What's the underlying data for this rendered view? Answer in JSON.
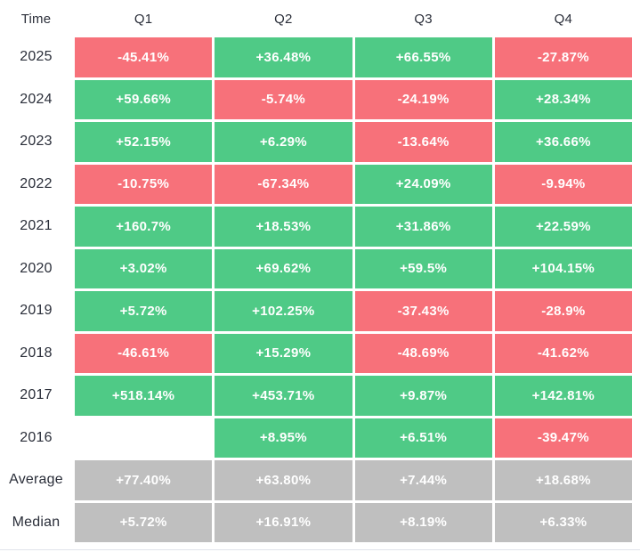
{
  "table": {
    "header": {
      "time_label": "Time",
      "columns": [
        "Q1",
        "Q2",
        "Q3",
        "Q4"
      ]
    },
    "rows": [
      {
        "label": "2025",
        "cells": [
          {
            "value": "-45.41%",
            "state": "negative"
          },
          {
            "value": "+36.48%",
            "state": "positive"
          },
          {
            "value": "+66.55%",
            "state": "positive"
          },
          {
            "value": "-27.87%",
            "state": "negative"
          }
        ]
      },
      {
        "label": "2024",
        "cells": [
          {
            "value": "+59.66%",
            "state": "positive"
          },
          {
            "value": "-5.74%",
            "state": "negative"
          },
          {
            "value": "-24.19%",
            "state": "negative"
          },
          {
            "value": "+28.34%",
            "state": "positive"
          }
        ]
      },
      {
        "label": "2023",
        "cells": [
          {
            "value": "+52.15%",
            "state": "positive"
          },
          {
            "value": "+6.29%",
            "state": "positive"
          },
          {
            "value": "-13.64%",
            "state": "negative"
          },
          {
            "value": "+36.66%",
            "state": "positive"
          }
        ]
      },
      {
        "label": "2022",
        "cells": [
          {
            "value": "-10.75%",
            "state": "negative"
          },
          {
            "value": "-67.34%",
            "state": "negative"
          },
          {
            "value": "+24.09%",
            "state": "positive"
          },
          {
            "value": "-9.94%",
            "state": "negative"
          }
        ]
      },
      {
        "label": "2021",
        "cells": [
          {
            "value": "+160.7%",
            "state": "positive"
          },
          {
            "value": "+18.53%",
            "state": "positive"
          },
          {
            "value": "+31.86%",
            "state": "positive"
          },
          {
            "value": "+22.59%",
            "state": "positive"
          }
        ]
      },
      {
        "label": "2020",
        "cells": [
          {
            "value": "+3.02%",
            "state": "positive"
          },
          {
            "value": "+69.62%",
            "state": "positive"
          },
          {
            "value": "+59.5%",
            "state": "positive"
          },
          {
            "value": "+104.15%",
            "state": "positive"
          }
        ]
      },
      {
        "label": "2019",
        "cells": [
          {
            "value": "+5.72%",
            "state": "positive"
          },
          {
            "value": "+102.25%",
            "state": "positive"
          },
          {
            "value": "-37.43%",
            "state": "negative"
          },
          {
            "value": "-28.9%",
            "state": "negative"
          }
        ]
      },
      {
        "label": "2018",
        "cells": [
          {
            "value": "-46.61%",
            "state": "negative"
          },
          {
            "value": "+15.29%",
            "state": "positive"
          },
          {
            "value": "-48.69%",
            "state": "negative"
          },
          {
            "value": "-41.62%",
            "state": "negative"
          }
        ]
      },
      {
        "label": "2017",
        "cells": [
          {
            "value": "+518.14%",
            "state": "positive"
          },
          {
            "value": "+453.71%",
            "state": "positive"
          },
          {
            "value": "+9.87%",
            "state": "positive"
          },
          {
            "value": "+142.81%",
            "state": "positive"
          }
        ]
      },
      {
        "label": "2016",
        "cells": [
          {
            "value": "",
            "state": "empty"
          },
          {
            "value": "+8.95%",
            "state": "positive"
          },
          {
            "value": "+6.51%",
            "state": "positive"
          },
          {
            "value": "-39.47%",
            "state": "negative"
          }
        ]
      },
      {
        "label": "Average",
        "cells": [
          {
            "value": "+77.40%",
            "state": "summary"
          },
          {
            "value": "+63.80%",
            "state": "summary"
          },
          {
            "value": "+7.44%",
            "state": "summary"
          },
          {
            "value": "+18.68%",
            "state": "summary"
          }
        ]
      },
      {
        "label": "Median",
        "cells": [
          {
            "value": "+5.72%",
            "state": "summary"
          },
          {
            "value": "+16.91%",
            "state": "summary"
          },
          {
            "value": "+8.19%",
            "state": "summary"
          },
          {
            "value": "+6.33%",
            "state": "summary"
          }
        ]
      }
    ]
  },
  "colors": {
    "positive": "#4fca86",
    "negative": "#f7717a",
    "summary": "#bfbfbf",
    "label_text": "#2a2e39",
    "cell_text": "#ffffff",
    "divider": "#e0e3eb"
  },
  "chart_data": {
    "type": "heatmap",
    "columns": [
      "Q1",
      "Q2",
      "Q3",
      "Q4"
    ],
    "rows": [
      "2025",
      "2024",
      "2023",
      "2022",
      "2021",
      "2020",
      "2019",
      "2018",
      "2017",
      "2016",
      "Average",
      "Median"
    ],
    "values_pct": [
      [
        -45.41,
        36.48,
        66.55,
        -27.87
      ],
      [
        59.66,
        -5.74,
        -24.19,
        28.34
      ],
      [
        52.15,
        6.29,
        -13.64,
        36.66
      ],
      [
        -10.75,
        -67.34,
        24.09,
        -9.94
      ],
      [
        160.7,
        18.53,
        31.86,
        22.59
      ],
      [
        3.02,
        69.62,
        59.5,
        104.15
      ],
      [
        5.72,
        102.25,
        -37.43,
        -28.9
      ],
      [
        -46.61,
        15.29,
        -48.69,
        -41.62
      ],
      [
        518.14,
        453.71,
        9.87,
        142.81
      ],
      [
        null,
        8.95,
        6.51,
        -39.47
      ],
      [
        77.4,
        63.8,
        7.44,
        18.68
      ],
      [
        5.72,
        16.91,
        8.19,
        6.33
      ]
    ],
    "legend": "green = positive quarter, red = negative quarter, gray = summary rows",
    "grid": false
  }
}
